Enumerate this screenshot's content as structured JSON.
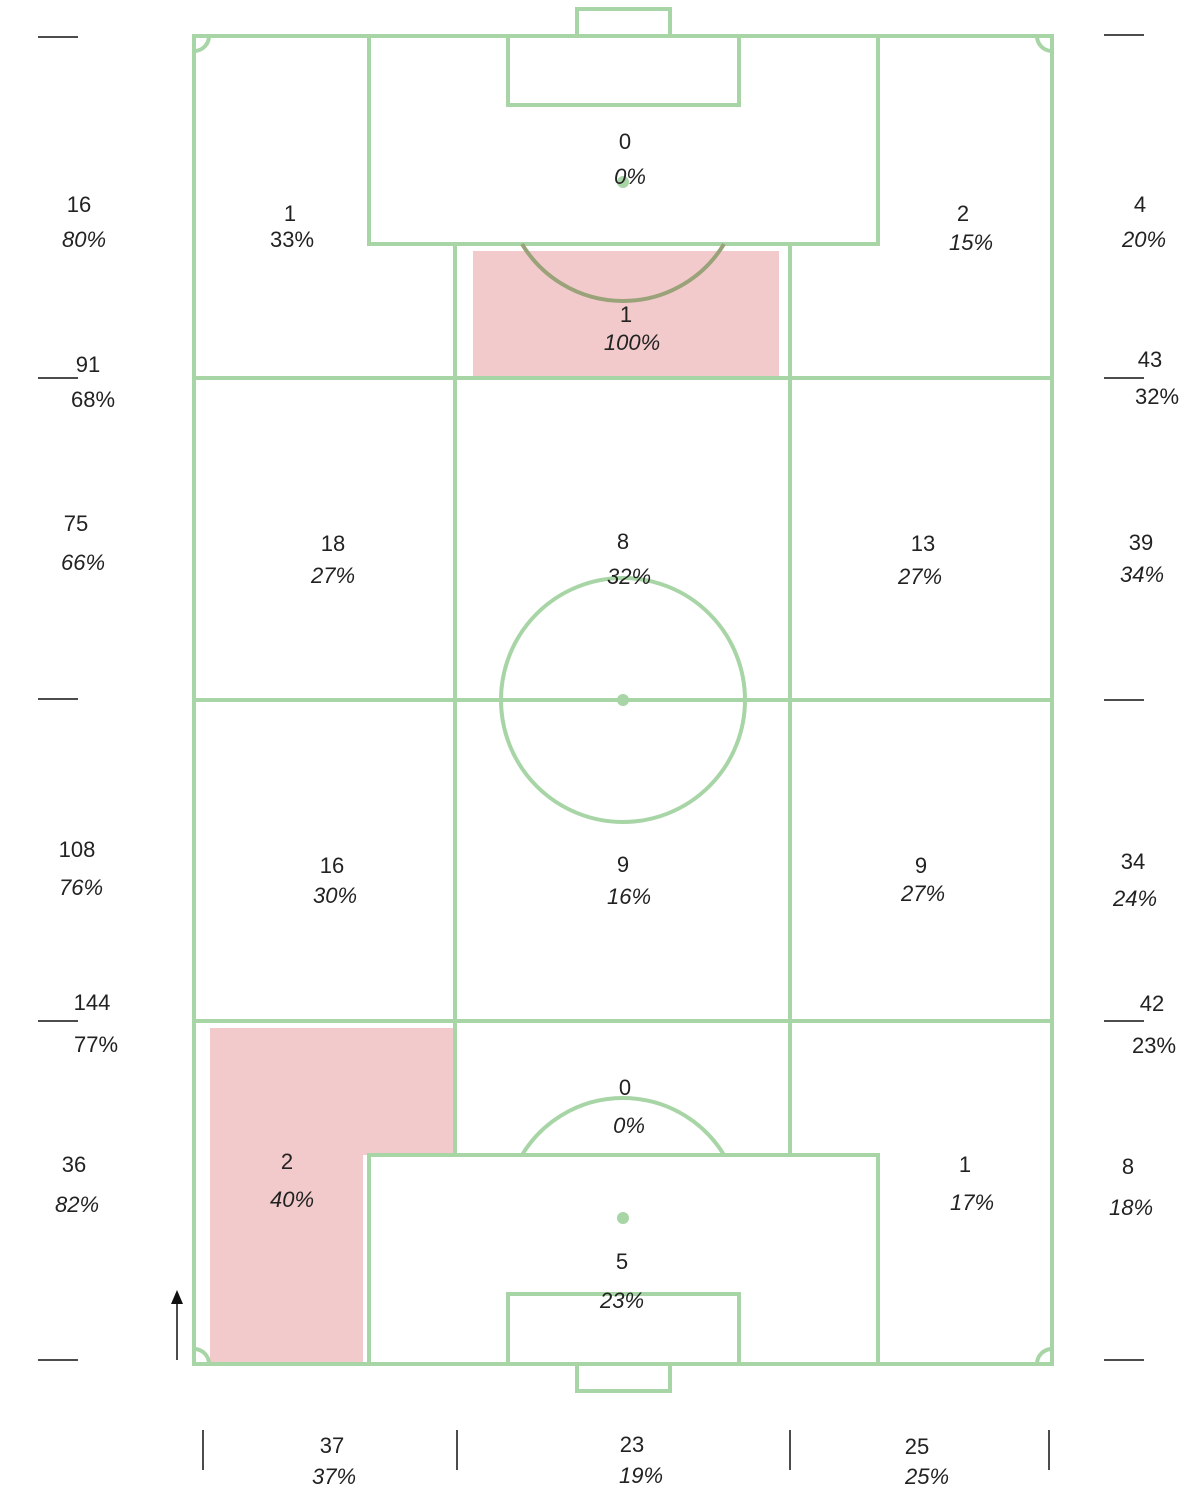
{
  "zones": [
    {
      "count": "1",
      "pct": "33%"
    },
    {
      "count": "0",
      "pct": "0%"
    },
    {
      "count": "1",
      "pct": "100%"
    },
    {
      "count": "2",
      "pct": "15%"
    },
    {
      "count": "18",
      "pct": "27%"
    },
    {
      "count": "8",
      "pct": "32%"
    },
    {
      "count": "13",
      "pct": "27%"
    },
    {
      "count": "16",
      "pct": "30%"
    },
    {
      "count": "9",
      "pct": "16%"
    },
    {
      "count": "9",
      "pct": "27%"
    },
    {
      "count": "2",
      "pct": "40%"
    },
    {
      "count": "0",
      "pct": "0%"
    },
    {
      "count": "5",
      "pct": "23%"
    },
    {
      "count": "1",
      "pct": "17%"
    }
  ],
  "left": [
    {
      "count": "16",
      "pct": "80%"
    },
    {
      "count": "91",
      "pct": "68%"
    },
    {
      "count": "75",
      "pct": "66%"
    },
    {
      "count": "108",
      "pct": "76%"
    },
    {
      "count": "144",
      "pct": "77%"
    },
    {
      "count": "36",
      "pct": "82%"
    }
  ],
  "right": [
    {
      "count": "4",
      "pct": "20%"
    },
    {
      "count": "43",
      "pct": "32%"
    },
    {
      "count": "39",
      "pct": "34%"
    },
    {
      "count": "34",
      "pct": "24%"
    },
    {
      "count": "42",
      "pct": "23%"
    },
    {
      "count": "8",
      "pct": "18%"
    }
  ],
  "bottom": [
    {
      "count": "37",
      "pct": "37%"
    },
    {
      "count": "23",
      "pct": "19%"
    },
    {
      "count": "25",
      "pct": "25%"
    }
  ]
}
